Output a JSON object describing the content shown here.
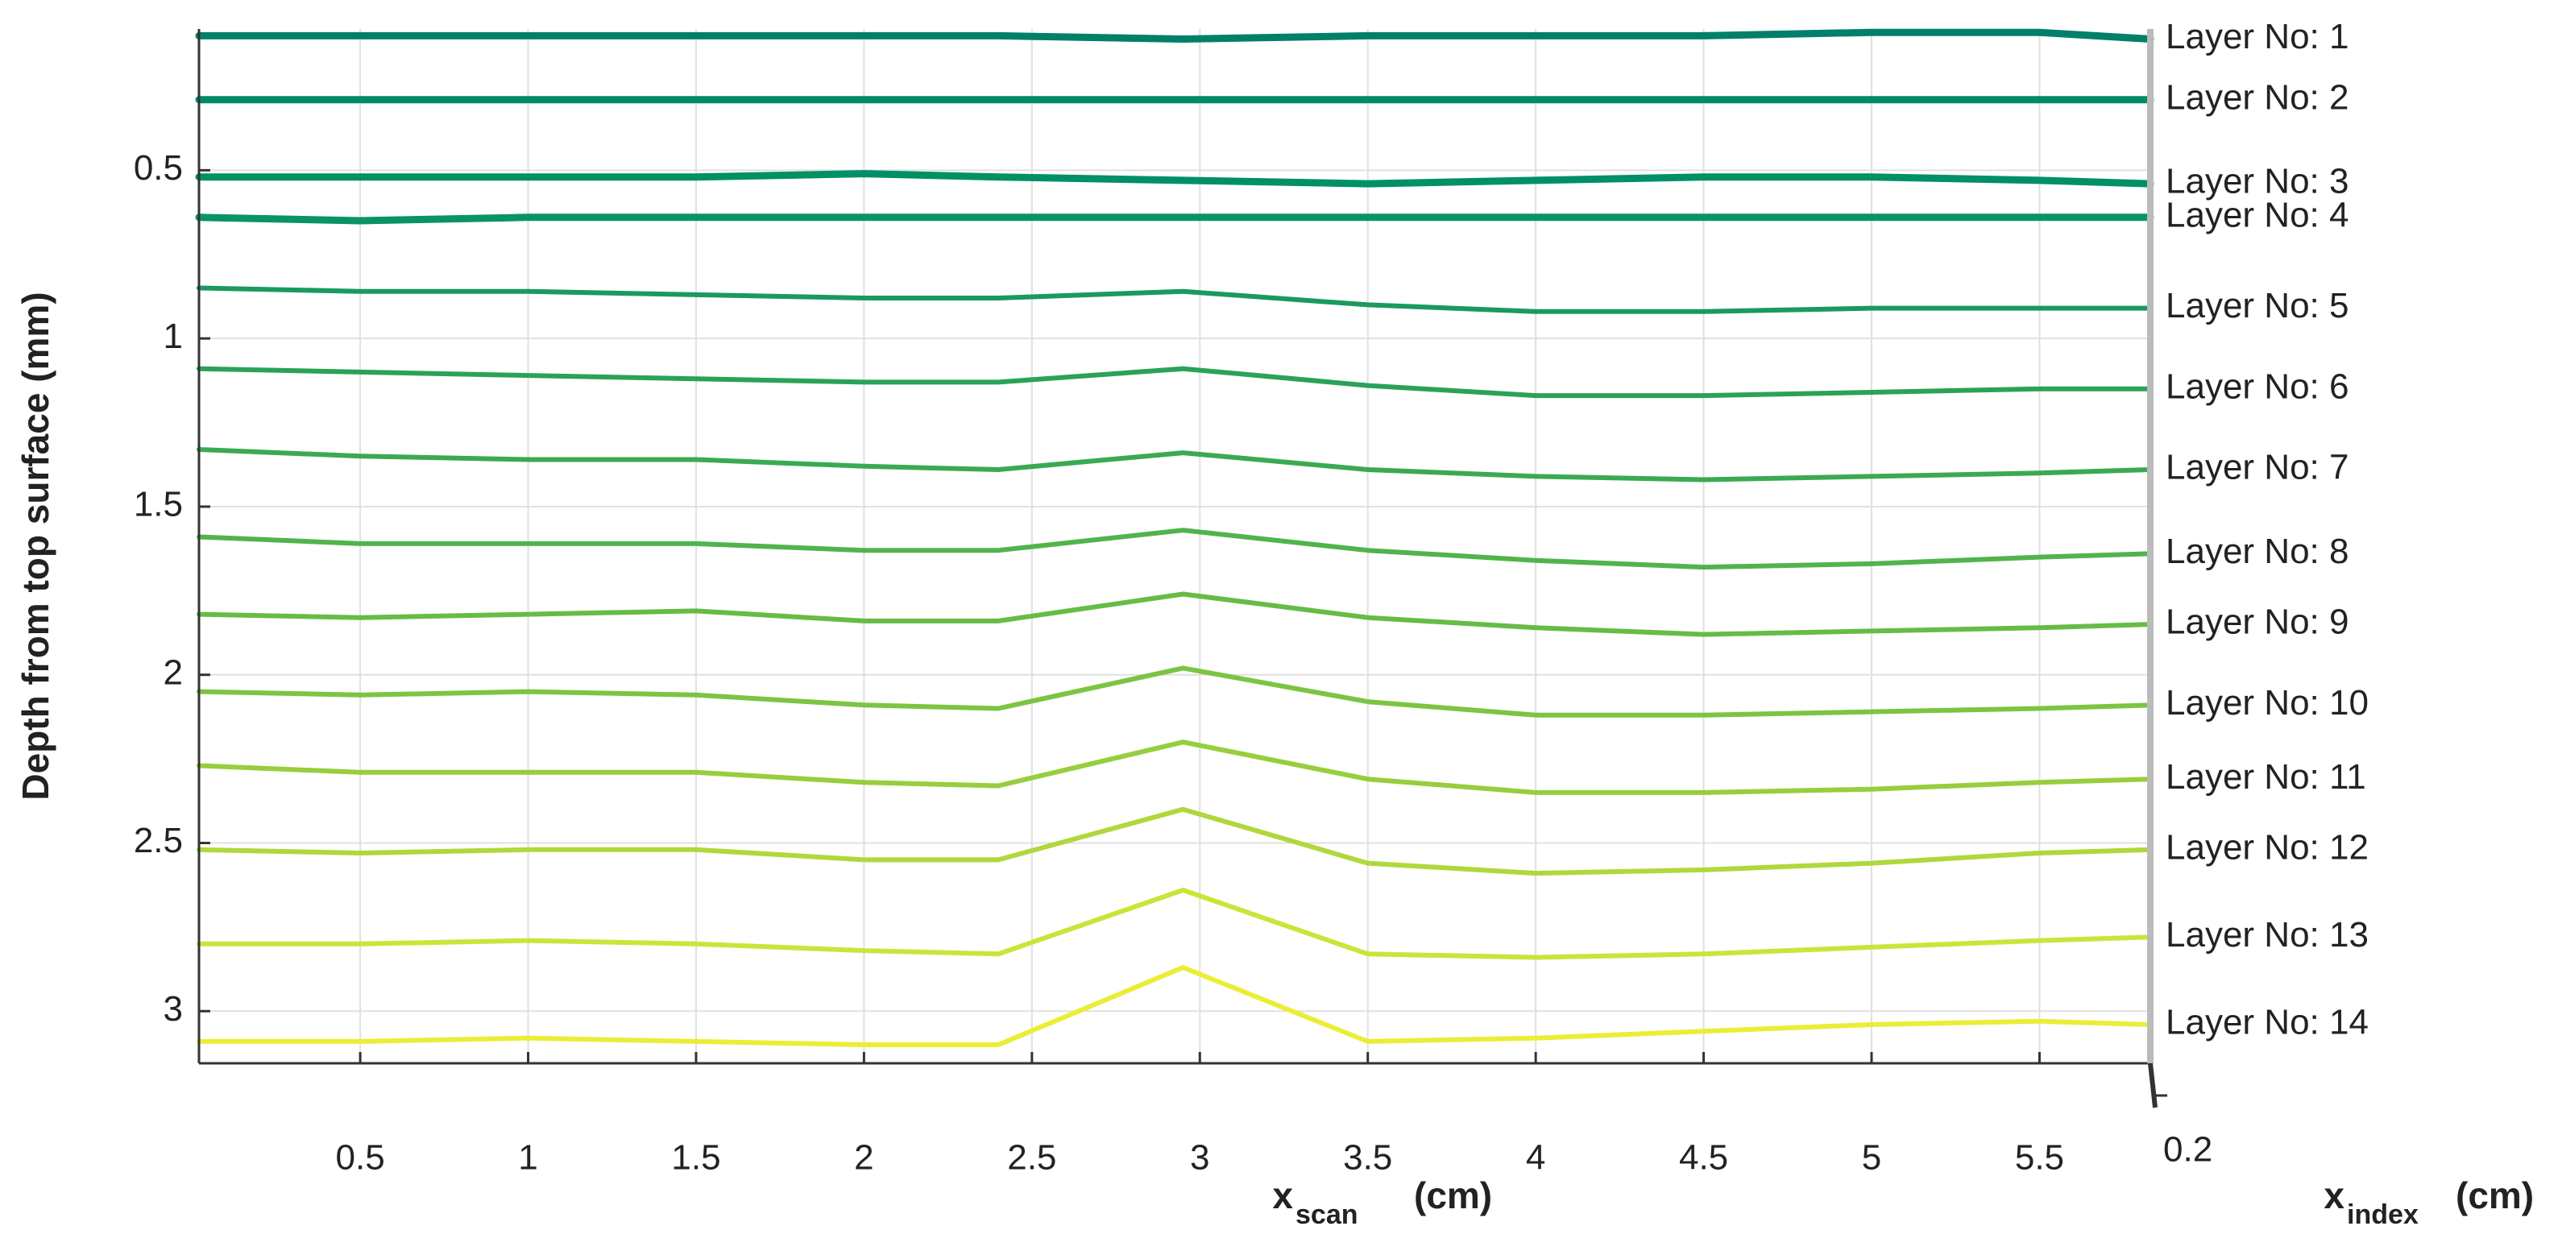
{
  "chart_data": {
    "type": "line",
    "ylabel": "Depth from top surface (mm)",
    "xlabel": "x",
    "xlabel_sub": "scan",
    "xlabel_unit": "(cm)",
    "zlabel": "x",
    "zlabel_sub": "index",
    "zlabel_unit": "(cm)",
    "zticks": [
      0.2
    ],
    "x": [
      0.02,
      0.5,
      1,
      1.5,
      2,
      2.4,
      2.95,
      3.5,
      4,
      4.5,
      5,
      5.5,
      5.83
    ],
    "xlim": [
      0.02,
      5.83
    ],
    "xticks": [
      0.5,
      1,
      1.5,
      2,
      2.5,
      3,
      3.5,
      4,
      4.5,
      5,
      5.5
    ],
    "ylim": [
      0.08,
      3.155
    ],
    "yticks": [
      0.5,
      1,
      1.5,
      2,
      2.5,
      3
    ],
    "yreverse": true,
    "grid": true,
    "series": [
      {
        "name": "Layer No: 1",
        "color": "#00806a",
        "values": [
          0.1,
          0.1,
          0.1,
          0.1,
          0.1,
          0.1,
          0.11,
          0.1,
          0.1,
          0.1,
          0.09,
          0.09,
          0.11
        ]
      },
      {
        "name": "Layer No: 2",
        "color": "#008a68",
        "values": [
          0.29,
          0.29,
          0.29,
          0.29,
          0.29,
          0.29,
          0.29,
          0.29,
          0.29,
          0.29,
          0.29,
          0.29,
          0.29
        ]
      },
      {
        "name": "Layer No: 3",
        "color": "#009066",
        "values": [
          0.52,
          0.52,
          0.52,
          0.52,
          0.51,
          0.52,
          0.53,
          0.54,
          0.53,
          0.52,
          0.52,
          0.53,
          0.54
        ]
      },
      {
        "name": "Layer No: 4",
        "color": "#0a9464",
        "values": [
          0.64,
          0.65,
          0.64,
          0.64,
          0.64,
          0.64,
          0.64,
          0.64,
          0.64,
          0.64,
          0.64,
          0.64,
          0.64
        ]
      },
      {
        "name": "Layer No: 5",
        "color": "#1a9a5e",
        "values": [
          0.85,
          0.86,
          0.86,
          0.87,
          0.88,
          0.88,
          0.86,
          0.9,
          0.92,
          0.92,
          0.91,
          0.91,
          0.91
        ]
      },
      {
        "name": "Layer No: 6",
        "color": "#2aa258",
        "values": [
          1.09,
          1.1,
          1.11,
          1.12,
          1.13,
          1.13,
          1.09,
          1.14,
          1.17,
          1.17,
          1.16,
          1.15,
          1.15
        ]
      },
      {
        "name": "Layer No: 7",
        "color": "#3aaa52",
        "values": [
          1.33,
          1.35,
          1.36,
          1.36,
          1.38,
          1.39,
          1.34,
          1.39,
          1.41,
          1.42,
          1.41,
          1.4,
          1.39
        ]
      },
      {
        "name": "Layer No: 8",
        "color": "#50b44c",
        "values": [
          1.59,
          1.61,
          1.61,
          1.61,
          1.63,
          1.63,
          1.57,
          1.63,
          1.66,
          1.68,
          1.67,
          1.65,
          1.64
        ]
      },
      {
        "name": "Layer No: 9",
        "color": "#66bc46",
        "values": [
          1.82,
          1.83,
          1.82,
          1.81,
          1.84,
          1.84,
          1.76,
          1.83,
          1.86,
          1.88,
          1.87,
          1.86,
          1.85
        ]
      },
      {
        "name": "Layer No: 10",
        "color": "#7cc442",
        "values": [
          2.05,
          2.06,
          2.05,
          2.06,
          2.09,
          2.1,
          1.98,
          2.08,
          2.12,
          2.12,
          2.11,
          2.1,
          2.09
        ]
      },
      {
        "name": "Layer No: 11",
        "color": "#96ce3e",
        "values": [
          2.27,
          2.29,
          2.29,
          2.29,
          2.32,
          2.33,
          2.2,
          2.31,
          2.35,
          2.35,
          2.34,
          2.32,
          2.31
        ]
      },
      {
        "name": "Layer No: 12",
        "color": "#b0d83c",
        "values": [
          2.52,
          2.53,
          2.52,
          2.52,
          2.55,
          2.55,
          2.4,
          2.56,
          2.59,
          2.58,
          2.56,
          2.53,
          2.52
        ]
      },
      {
        "name": "Layer No: 13",
        "color": "#cce43a",
        "values": [
          2.8,
          2.8,
          2.79,
          2.8,
          2.82,
          2.83,
          2.64,
          2.83,
          2.84,
          2.83,
          2.81,
          2.79,
          2.78
        ]
      },
      {
        "name": "Layer No: 14",
        "color": "#eaee36",
        "values": [
          3.09,
          3.09,
          3.08,
          3.09,
          3.1,
          3.1,
          2.87,
          3.09,
          3.08,
          3.06,
          3.04,
          3.03,
          3.04
        ]
      }
    ]
  }
}
